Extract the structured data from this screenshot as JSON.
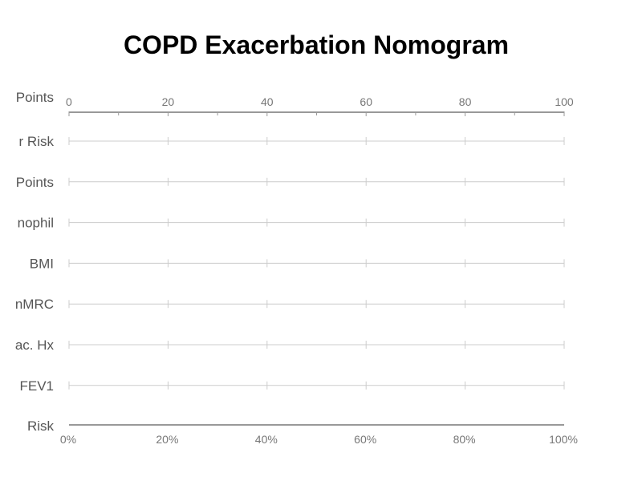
{
  "chart_data": {
    "type": "nomogram",
    "title": "COPD Exacerbation Nomogram",
    "x_min": 0,
    "x_max": 100,
    "points_axis": {
      "label": "Points",
      "ticks": [
        0,
        20,
        40,
        60,
        80,
        100
      ],
      "minor_step": 10
    },
    "rows": [
      {
        "label": "r Risk"
      },
      {
        "label": "Points"
      },
      {
        "label": "nophil"
      },
      {
        "label": "BMI"
      },
      {
        "label": "nMRC"
      },
      {
        "label": "ac. Hx"
      },
      {
        "label": "FEV1"
      }
    ],
    "row_ticks": [
      0,
      20,
      40,
      60,
      80,
      100
    ],
    "risk_axis": {
      "label": "Risk",
      "ticks": [
        "0%",
        "20%",
        "40%",
        "60%",
        "80%",
        "100%"
      ]
    },
    "grid": false
  },
  "colors": {
    "axis": "#999999",
    "row_line": "#cccccc",
    "label_text": "#555555",
    "tick_text": "#777777",
    "title_text": "#000000"
  }
}
